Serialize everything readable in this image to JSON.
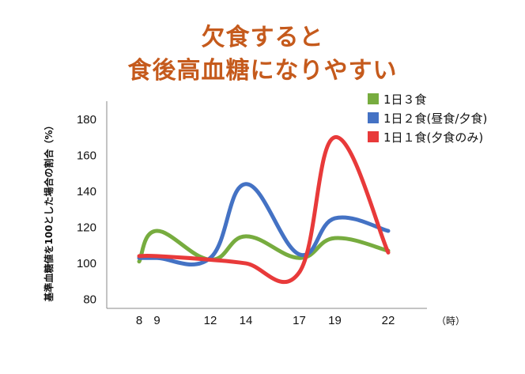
{
  "title": {
    "line1": "欠食すると",
    "line2": "食後高血糖になりやすい"
  },
  "chart_data": {
    "type": "line",
    "ylabel": "基準血糖値を100とした場合の割合（%）",
    "xunit": "（時）",
    "x": [
      8,
      9,
      12,
      14,
      17,
      19,
      22
    ],
    "yticks": [
      80,
      100,
      120,
      140,
      160,
      180
    ],
    "ylim": [
      75,
      190
    ],
    "grid": false,
    "legend_position": "top-right",
    "series": [
      {
        "name": "1日３食",
        "color": "#77ac3f",
        "points": [
          [
            8,
            101
          ],
          [
            9,
            118
          ],
          [
            12,
            102
          ],
          [
            14,
            115
          ],
          [
            17,
            103
          ],
          [
            19,
            114
          ],
          [
            22,
            107
          ]
        ]
      },
      {
        "name": "1日２食(昼食/夕食)",
        "color": "#4472c4",
        "points": [
          [
            8,
            103
          ],
          [
            9,
            103
          ],
          [
            12,
            103
          ],
          [
            14,
            144
          ],
          [
            17,
            105
          ],
          [
            19,
            125
          ],
          [
            22,
            118
          ]
        ]
      },
      {
        "name": "1日１食(夕食のみ)",
        "color": "#e83a3a",
        "points": [
          [
            8,
            104
          ],
          [
            9,
            104
          ],
          [
            12,
            102
          ],
          [
            14,
            100
          ],
          [
            17,
            95
          ],
          [
            19,
            170
          ],
          [
            22,
            106
          ]
        ]
      }
    ]
  }
}
